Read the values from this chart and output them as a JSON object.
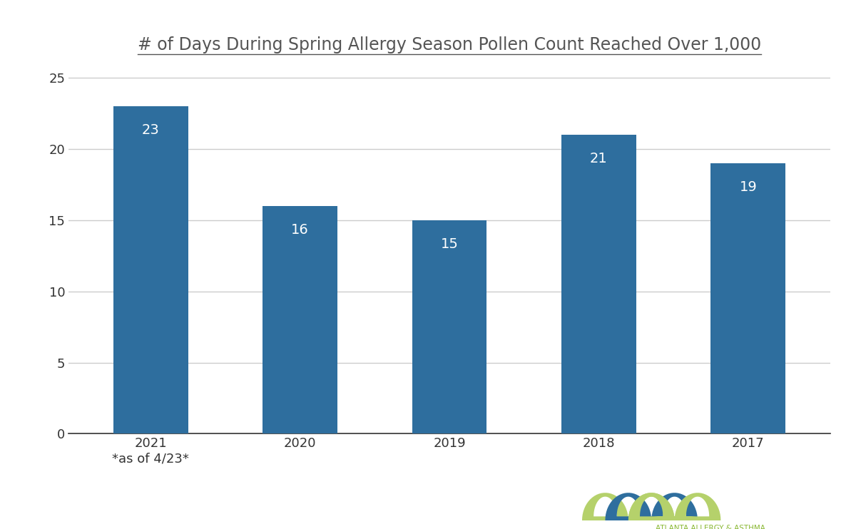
{
  "title": "# of Days During Spring Allergy Season Pollen Count Reached Over 1,000",
  "categories": [
    "2021\n*as of 4/23*",
    "2020",
    "2019",
    "2018",
    "2017"
  ],
  "values": [
    23,
    16,
    15,
    21,
    19
  ],
  "bar_color": "#2E6E9E",
  "label_color": "#ffffff",
  "ylim": [
    0,
    26
  ],
  "yticks": [
    0,
    5,
    10,
    15,
    20,
    25
  ],
  "background_color": "#ffffff",
  "grid_color": "#cccccc",
  "title_fontsize": 17,
  "bar_label_fontsize": 14,
  "tick_fontsize": 13,
  "title_color": "#555555",
  "green_color": "#8ab833",
  "blue_color": "#2E6E9E",
  "light_green_color": "#b5d16b"
}
